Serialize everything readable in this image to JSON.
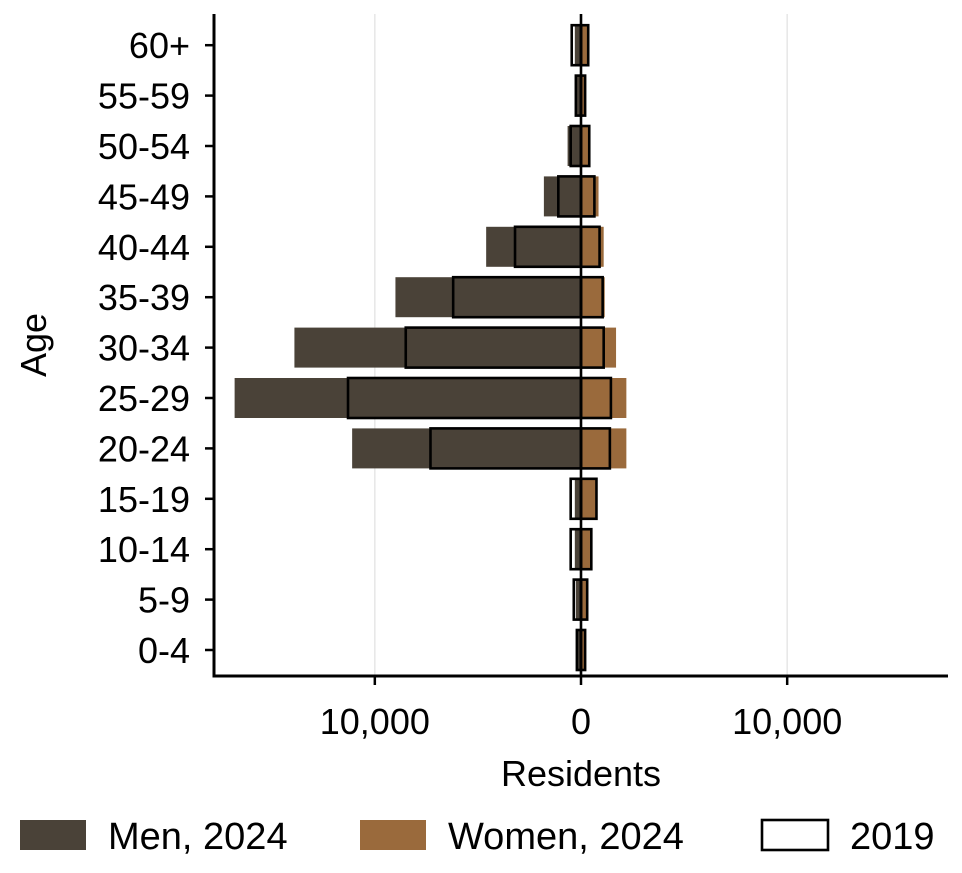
{
  "chart_data": {
    "type": "bar",
    "orientation": "horizontal",
    "subtype": "population-pyramid",
    "title": "",
    "xlabel": "Residents",
    "ylabel": "Age",
    "categories": [
      "0-4",
      "5-9",
      "10-14",
      "15-19",
      "20-24",
      "25-29",
      "30-34",
      "35-39",
      "40-44",
      "45-49",
      "50-54",
      "55-59",
      "60+"
    ],
    "xlim": [
      -17800,
      17800
    ],
    "xticks": [
      -10000,
      0,
      10000
    ],
    "xtick_labels": [
      "10,000",
      "0",
      "10,000"
    ],
    "grid": "vertical gridlines at x ticks",
    "legend_position": "bottom",
    "series": [
      {
        "name": "Men, 2024",
        "side": "left",
        "color": "#4a4238",
        "values": [
          150,
          250,
          300,
          300,
          11100,
          16800,
          13900,
          9000,
          4600,
          1800,
          650,
          250,
          300
        ]
      },
      {
        "name": "Women, 2024",
        "side": "right",
        "color": "#9a6a3c",
        "values": [
          200,
          300,
          500,
          750,
          2200,
          2200,
          1700,
          1150,
          1100,
          850,
          400,
          150,
          350
        ]
      },
      {
        "name": "2019 Men",
        "side": "left",
        "outline": true,
        "values": [
          200,
          350,
          500,
          500,
          7300,
          11300,
          8500,
          6200,
          3200,
          1100,
          500,
          250,
          450
        ]
      },
      {
        "name": "2019 Women",
        "side": "right",
        "outline": true,
        "values": [
          200,
          300,
          500,
          750,
          1400,
          1450,
          1100,
          1050,
          900,
          650,
          400,
          200,
          350
        ]
      }
    ],
    "legend": [
      {
        "label": "Men, 2024",
        "style": "fill",
        "color": "#4a4238"
      },
      {
        "label": "Women, 2024",
        "style": "fill",
        "color": "#9a6a3c"
      },
      {
        "label": "2019",
        "style": "outline",
        "color": "#000000"
      }
    ]
  }
}
